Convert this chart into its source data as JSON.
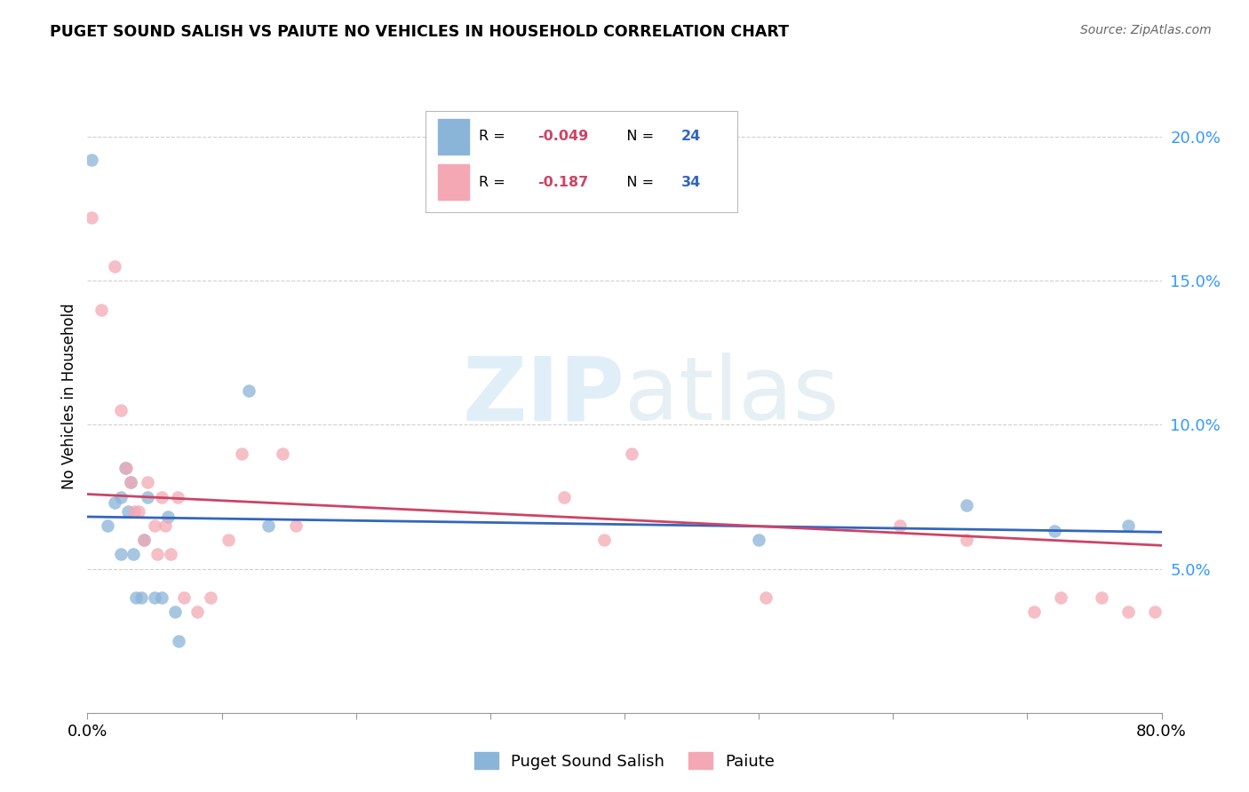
{
  "title": "PUGET SOUND SALISH VS PAIUTE NO VEHICLES IN HOUSEHOLD CORRELATION CHART",
  "source": "Source: ZipAtlas.com",
  "ylabel": "No Vehicles in Household",
  "legend_bottom": [
    "Puget Sound Salish",
    "Paiute"
  ],
  "blue_color": "#8ab4d8",
  "pink_color": "#f4a8b4",
  "trend_blue": "#3366bb",
  "trend_pink": "#cc4466",
  "right_label_color": "#3399ff",
  "xlim": [
    0.0,
    0.8
  ],
  "ylim": [
    0.0,
    0.22
  ],
  "y_ticks_right": [
    0.05,
    0.1,
    0.15,
    0.2
  ],
  "y_tick_labels_right": [
    "5.0%",
    "10.0%",
    "15.0%",
    "20.0%"
  ],
  "blue_x": [
    0.003,
    0.015,
    0.02,
    0.025,
    0.025,
    0.028,
    0.03,
    0.032,
    0.034,
    0.036,
    0.04,
    0.042,
    0.045,
    0.05,
    0.055,
    0.06,
    0.065,
    0.068,
    0.12,
    0.135,
    0.5,
    0.655,
    0.72,
    0.775
  ],
  "blue_y": [
    0.192,
    0.065,
    0.073,
    0.075,
    0.055,
    0.085,
    0.07,
    0.08,
    0.055,
    0.04,
    0.04,
    0.06,
    0.075,
    0.04,
    0.04,
    0.068,
    0.035,
    0.025,
    0.112,
    0.065,
    0.06,
    0.072,
    0.063,
    0.065
  ],
  "pink_x": [
    0.003,
    0.01,
    0.02,
    0.025,
    0.029,
    0.032,
    0.035,
    0.038,
    0.042,
    0.045,
    0.05,
    0.052,
    0.055,
    0.058,
    0.062,
    0.067,
    0.072,
    0.082,
    0.092,
    0.105,
    0.115,
    0.145,
    0.155,
    0.355,
    0.385,
    0.405,
    0.505,
    0.605,
    0.655,
    0.705,
    0.725,
    0.755,
    0.775,
    0.795
  ],
  "pink_y": [
    0.172,
    0.14,
    0.155,
    0.105,
    0.085,
    0.08,
    0.07,
    0.07,
    0.06,
    0.08,
    0.065,
    0.055,
    0.075,
    0.065,
    0.055,
    0.075,
    0.04,
    0.035,
    0.04,
    0.06,
    0.09,
    0.09,
    0.065,
    0.075,
    0.06,
    0.09,
    0.04,
    0.065,
    0.06,
    0.035,
    0.04,
    0.04,
    0.035,
    0.035
  ],
  "blue_r": -0.049,
  "blue_n": 24,
  "pink_r": -0.187,
  "pink_n": 34,
  "watermark_zip": "ZIP",
  "watermark_atlas": "atlas",
  "background_color": "#ffffff",
  "grid_color": "#d0d0d0",
  "marker_size": 110,
  "blue_trend_y0": 0.074,
  "blue_trend_y1": 0.068,
  "pink_trend_y0": 0.082,
  "pink_trend_y1": 0.048
}
